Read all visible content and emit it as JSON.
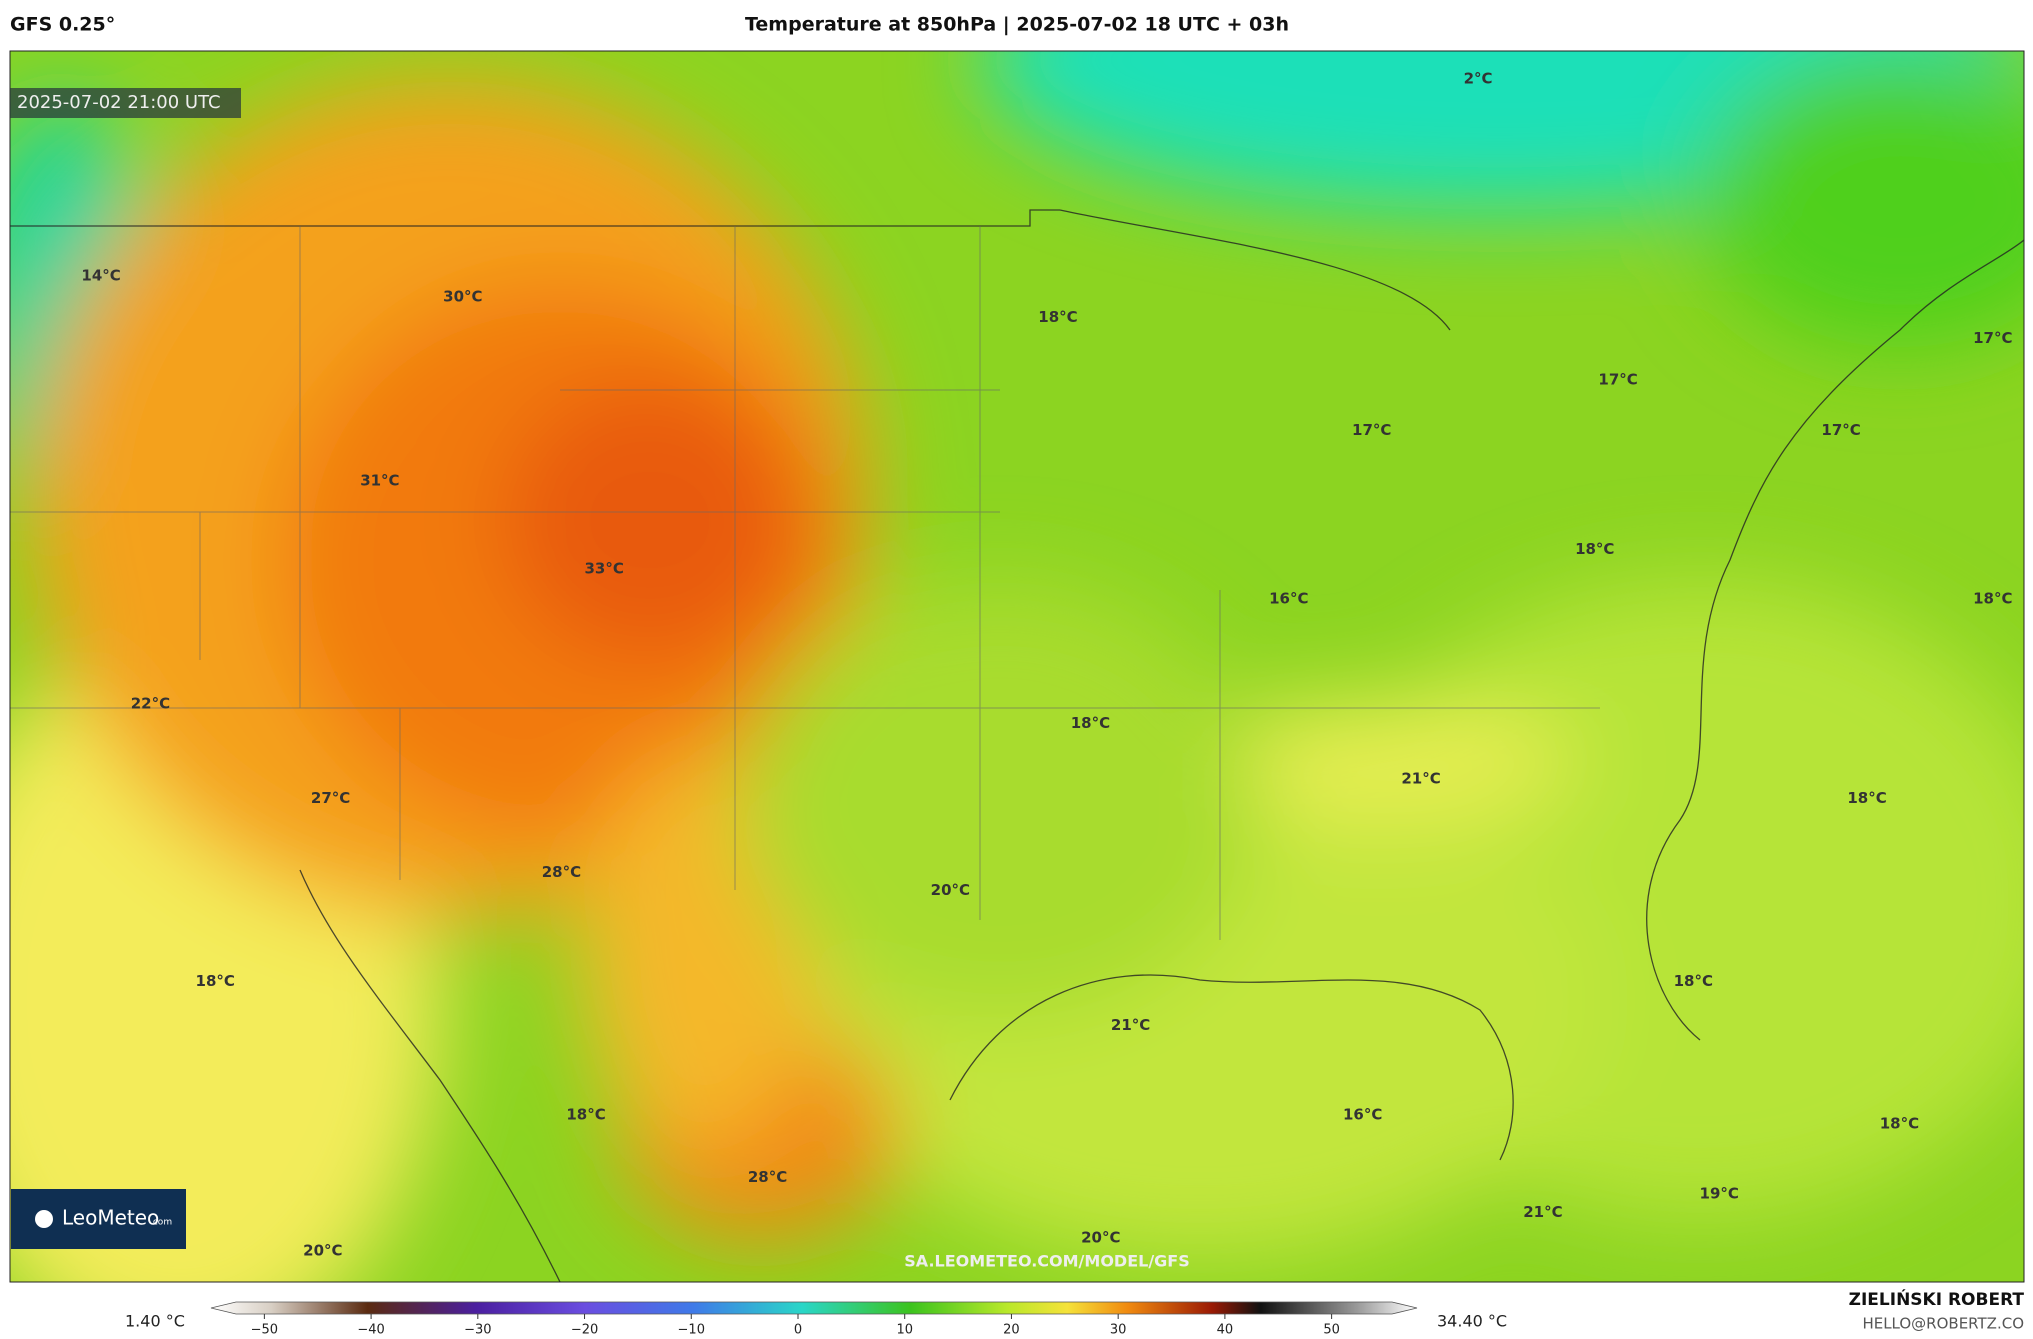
{
  "header": {
    "model": "GFS 0.25°",
    "title": "Temperature at 850hPa | 2025-07-02 18 UTC + 03h"
  },
  "map": {
    "timestamp": "2025-07-02 21:00 UTC",
    "watermark": "SA.LEOMETEO.COM/MODEL/GFS",
    "logo": {
      "name": "LeoMeteo",
      "suffix": ".com"
    },
    "labels": [
      "2°C",
      "14°C",
      "30°C",
      "18°C",
      "17°C",
      "17°C",
      "17°C",
      "17°C",
      "31°C",
      "18°C",
      "33°C",
      "16°C",
      "18°C",
      "22°C",
      "18°C",
      "21°C",
      "27°C",
      "18°C",
      "28°C",
      "20°C",
      "18°C",
      "18°C",
      "21°C",
      "16°C",
      "18°C",
      "18°C",
      "28°C",
      "19°C",
      "21°C",
      "20°C",
      "20°C"
    ]
  },
  "colorbar": {
    "min_label": "1.40 °C",
    "max_label": "34.40 °C",
    "lim": [
      -55,
      58
    ],
    "ticks": [
      {
        "value": -50,
        "label": "−50"
      },
      {
        "value": -40,
        "label": "−40"
      },
      {
        "value": -30,
        "label": "−30"
      },
      {
        "value": -20,
        "label": "−20"
      },
      {
        "value": -10,
        "label": "−10"
      },
      0,
      10,
      20,
      30,
      40,
      50
    ]
  },
  "footer": {
    "author": "ZIELIŃSKI ROBERT",
    "email": "HELLO@ROBERTZ.CO"
  }
}
